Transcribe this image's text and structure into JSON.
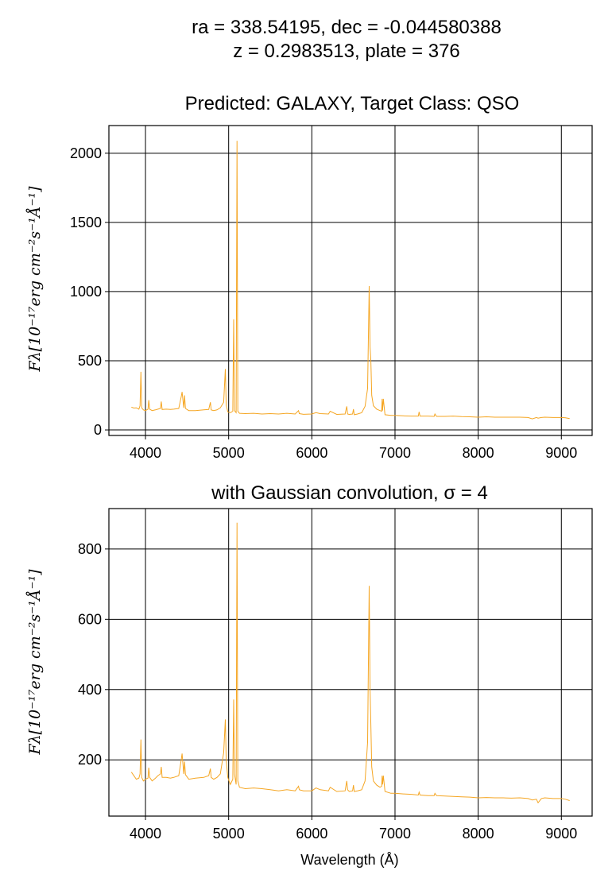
{
  "figure": {
    "title_line1": "ra = 338.54195, dec = -0.044580388",
    "title_line2": "z = 0.2983513, plate = 376",
    "line_color": "#f5a623"
  },
  "chart_data": [
    {
      "type": "line",
      "title": "Predicted: GALAXY, Target Class: QSO",
      "xlabel": "",
      "ylabel": "Fλ[10⁻¹⁷erg cm⁻²s⁻¹Å⁻¹]",
      "xlim": [
        3560,
        9370
      ],
      "ylim": [
        -40,
        2200
      ],
      "xticks": [
        4000,
        5000,
        6000,
        7000,
        8000,
        9000
      ],
      "yticks": [
        0,
        500,
        1000,
        1500,
        2000
      ],
      "grid": true,
      "series": [
        {
          "x": [
            3830,
            3860,
            3890,
            3920,
            3935,
            3945,
            3955,
            3975,
            4000,
            4030,
            4040,
            4050,
            4080,
            4120,
            4150,
            4180,
            4190,
            4200,
            4250,
            4300,
            4340,
            4400,
            4430,
            4440,
            4460,
            4470,
            4480,
            4520,
            4600,
            4700,
            4760,
            4780,
            4790,
            4820,
            4860,
            4900,
            4940,
            4960,
            4970,
            4990,
            5020,
            5050,
            5060,
            5070,
            5090,
            5100,
            5110,
            5130,
            5200,
            5300,
            5400,
            5500,
            5600,
            5700,
            5800,
            5840,
            5850,
            5900,
            6000,
            6050,
            6100,
            6200,
            6220,
            6300,
            6400,
            6420,
            6430,
            6450,
            6490,
            6500,
            6510,
            6550,
            6600,
            6640,
            6670,
            6690,
            6700,
            6710,
            6720,
            6740,
            6780,
            6820,
            6840,
            6845,
            6850,
            6860,
            6880,
            6950,
            7000,
            7100,
            7200,
            7280,
            7290,
            7300,
            7400,
            7470,
            7480,
            7500,
            7600,
            7700,
            7800,
            7900,
            8000,
            8100,
            8200,
            8300,
            8400,
            8500,
            8600,
            8650,
            8700,
            8720,
            8760,
            8800,
            8900,
            9000,
            9050,
            9100
          ],
          "y": [
            165,
            158,
            160,
            150,
            175,
            420,
            160,
            145,
            140,
            150,
            215,
            150,
            140,
            145,
            150,
            155,
            205,
            148,
            150,
            148,
            150,
            155,
            240,
            275,
            160,
            250,
            155,
            140,
            140,
            145,
            148,
            200,
            145,
            140,
            145,
            160,
            200,
            440,
            180,
            130,
            125,
            135,
            800,
            140,
            125,
            2090,
            135,
            120,
            118,
            120,
            115,
            118,
            115,
            120,
            115,
            140,
            118,
            113,
            115,
            125,
            118,
            115,
            135,
            112,
            115,
            170,
            115,
            112,
            115,
            150,
            110,
            115,
            125,
            170,
            300,
            1040,
            600,
            500,
            250,
            175,
            150,
            140,
            135,
            225,
            140,
            225,
            110,
            105,
            105,
            102,
            100,
            100,
            130,
            100,
            100,
            98,
            115,
            98,
            98,
            100,
            96,
            95,
            92,
            95,
            92,
            92,
            92,
            92,
            90,
            80,
            90,
            85,
            90,
            92,
            90,
            90,
            88,
            82
          ]
        }
      ]
    },
    {
      "type": "line",
      "title": "with Gaussian convolution, σ = 4",
      "xlabel": "Wavelength (Å)",
      "ylabel": "Fλ[10⁻¹⁷erg cm⁻²s⁻¹Å⁻¹]",
      "xlim": [
        3560,
        9370
      ],
      "ylim": [
        40,
        915
      ],
      "xticks": [
        4000,
        5000,
        6000,
        7000,
        8000,
        9000
      ],
      "yticks": [
        200,
        400,
        600,
        800
      ],
      "grid": true,
      "series": [
        {
          "x": [
            3830,
            3860,
            3890,
            3920,
            3935,
            3945,
            3955,
            3975,
            4000,
            4030,
            4040,
            4050,
            4080,
            4120,
            4150,
            4180,
            4190,
            4200,
            4250,
            4300,
            4340,
            4400,
            4430,
            4440,
            4460,
            4470,
            4480,
            4520,
            4600,
            4700,
            4760,
            4780,
            4790,
            4820,
            4860,
            4900,
            4940,
            4960,
            4970,
            4990,
            5020,
            5050,
            5060,
            5070,
            5090,
            5100,
            5110,
            5130,
            5200,
            5300,
            5400,
            5500,
            5600,
            5700,
            5800,
            5840,
            5850,
            5900,
            6000,
            6050,
            6100,
            6200,
            6220,
            6300,
            6400,
            6420,
            6430,
            6450,
            6490,
            6500,
            6510,
            6550,
            6600,
            6640,
            6670,
            6690,
            6700,
            6710,
            6720,
            6740,
            6780,
            6820,
            6840,
            6845,
            6850,
            6860,
            6880,
            6950,
            7000,
            7100,
            7200,
            7280,
            7290,
            7300,
            7400,
            7470,
            7480,
            7500,
            7600,
            7700,
            7800,
            7900,
            8000,
            8100,
            8200,
            8300,
            8400,
            8500,
            8600,
            8650,
            8700,
            8720,
            8760,
            8800,
            8900,
            9000,
            9050,
            9100
          ],
          "y": [
            165,
            155,
            145,
            148,
            160,
            258,
            150,
            140,
            145,
            148,
            178,
            150,
            140,
            148,
            155,
            160,
            180,
            150,
            150,
            148,
            150,
            155,
            200,
            218,
            160,
            195,
            158,
            145,
            148,
            150,
            155,
            175,
            150,
            145,
            150,
            160,
            220,
            315,
            200,
            150,
            130,
            145,
            372,
            160,
            130,
            875,
            140,
            122,
            118,
            120,
            118,
            115,
            112,
            115,
            112,
            125,
            115,
            112,
            112,
            120,
            115,
            112,
            122,
            110,
            112,
            140,
            115,
            110,
            112,
            128,
            110,
            112,
            115,
            140,
            250,
            695,
            400,
            300,
            180,
            140,
            128,
            122,
            125,
            155,
            130,
            155,
            110,
            105,
            105,
            103,
            102,
            100,
            108,
            100,
            98,
            98,
            105,
            98,
            97,
            96,
            95,
            94,
            92,
            93,
            92,
            92,
            91,
            92,
            90,
            86,
            88,
            78,
            90,
            92,
            90,
            90,
            88,
            84
          ]
        }
      ]
    }
  ]
}
